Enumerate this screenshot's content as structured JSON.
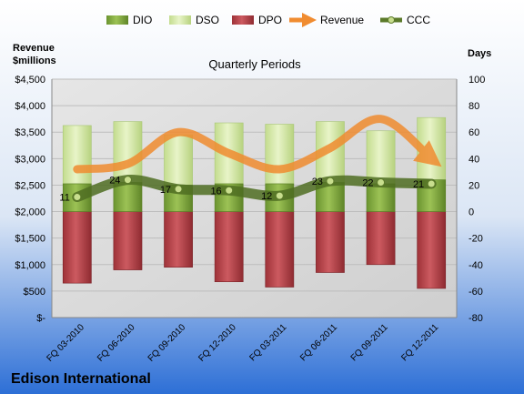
{
  "company": "Edison International",
  "chart_data": {
    "type": "bar",
    "title": "Quarterly Periods",
    "left_axis_title_lines": [
      "Revenue",
      "$millions"
    ],
    "right_axis_title": "Days",
    "categories": [
      "FQ 03-2010",
      "FQ 06-2010",
      "FQ 09-2010",
      "FQ 12-2010",
      "FQ 03-2011",
      "FQ 06-2011",
      "FQ 09-2011",
      "FQ 12-2011"
    ],
    "left_axis": {
      "min": 0,
      "max": 4500,
      "step": 500,
      "tick_labels": [
        "$-",
        "$500",
        "$1,000",
        "$1,500",
        "$2,000",
        "$2,500",
        "$3,000",
        "$3,500",
        "$4,000",
        "$4,500"
      ]
    },
    "right_axis": {
      "min": -80,
      "max": 100,
      "step": 20,
      "tick_labels": [
        "-80",
        "-60",
        "-40",
        "-20",
        "0",
        "20",
        "40",
        "60",
        "80",
        "100"
      ]
    },
    "legend": {
      "placement": "top",
      "items": [
        {
          "name": "DIO",
          "kind": "bar",
          "color": "#7fa83a"
        },
        {
          "name": "DSO",
          "kind": "bar",
          "color": "#cfe6a0"
        },
        {
          "name": "DPO",
          "kind": "bar",
          "color": "#b8444a"
        },
        {
          "name": "Revenue",
          "kind": "arrow",
          "color": "#f08c30"
        },
        {
          "name": "CCC",
          "kind": "line",
          "color": "#5b7a2a"
        }
      ]
    },
    "series": [
      {
        "name": "DIO",
        "axis": "right",
        "values": [
          21,
          22,
          20,
          21,
          21,
          22,
          21,
          24
        ]
      },
      {
        "name": "DSO",
        "axis": "right",
        "values": [
          44,
          46,
          38,
          46,
          45,
          46,
          40,
          47
        ]
      },
      {
        "name": "DPO",
        "axis": "right",
        "values": [
          -54,
          -44,
          -42,
          -53,
          -57,
          -46,
          -40,
          -58
        ]
      },
      {
        "name": "Revenue",
        "axis": "left",
        "values": [
          2800,
          2900,
          3500,
          3100,
          2800,
          3200,
          3750,
          3000
        ]
      },
      {
        "name": "CCC",
        "axis": "right",
        "values": [
          11,
          24,
          17,
          16,
          12,
          23,
          22,
          21
        ]
      }
    ],
    "ccc_labels": [
      "11",
      "24",
      "17",
      "16",
      "12",
      "23",
      "22",
      "21"
    ],
    "grid": true,
    "colors": {
      "background_top": "#ffffff",
      "background_bottom": "#2d6fd6",
      "plot_background": "#dcdcdc",
      "gridline": "#bdbdbd"
    }
  }
}
